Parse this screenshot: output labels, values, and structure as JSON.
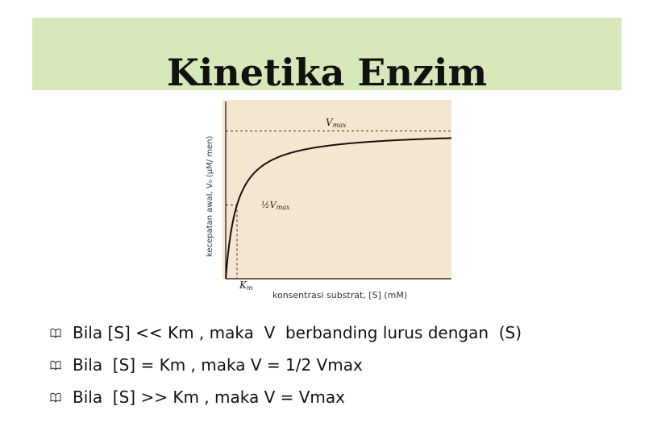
{
  "title": "Kinetika Enzim",
  "figure": {
    "ylabel": "kecepatan awal, V₀ (μM/ men)",
    "xlabel": "konsentrasi substrat, [S] (mM)",
    "vmax_label": "V",
    "vmax_sub": "max",
    "half_vmax_label": "½V",
    "half_vmax_sub": "max",
    "km_label": "K",
    "km_sub": "m",
    "colors": {
      "panel": "#f6e6cf",
      "curve": "#111111",
      "dashed": "#333333"
    }
  },
  "chart_data": {
    "type": "line",
    "title": "",
    "xlabel": "konsentrasi substrat, [S] (mM)",
    "ylabel": "kecepatan awal, V₀ (μM/ men)",
    "grid": false,
    "annotations": [
      "Vmax",
      "½Vmax",
      "Km"
    ],
    "series": [
      {
        "x": [
          0,
          0.25,
          0.5,
          1,
          2,
          3,
          4,
          6,
          8,
          10,
          12,
          14,
          16,
          18,
          20
        ],
        "values": [
          0,
          0.2,
          0.33,
          0.5,
          0.67,
          0.75,
          0.8,
          0.86,
          0.89,
          0.91,
          0.92,
          0.93,
          0.94,
          0.95,
          0.95
        ]
      }
    ]
  },
  "bullets": [
    "Bila [S] << Km , maka  V  berbanding lurus dengan  (S)",
    "Bila  [S] = Km , maka V = 1/2 Vmax",
    "Bila  [S] >> Km , maka V = Vmax"
  ]
}
